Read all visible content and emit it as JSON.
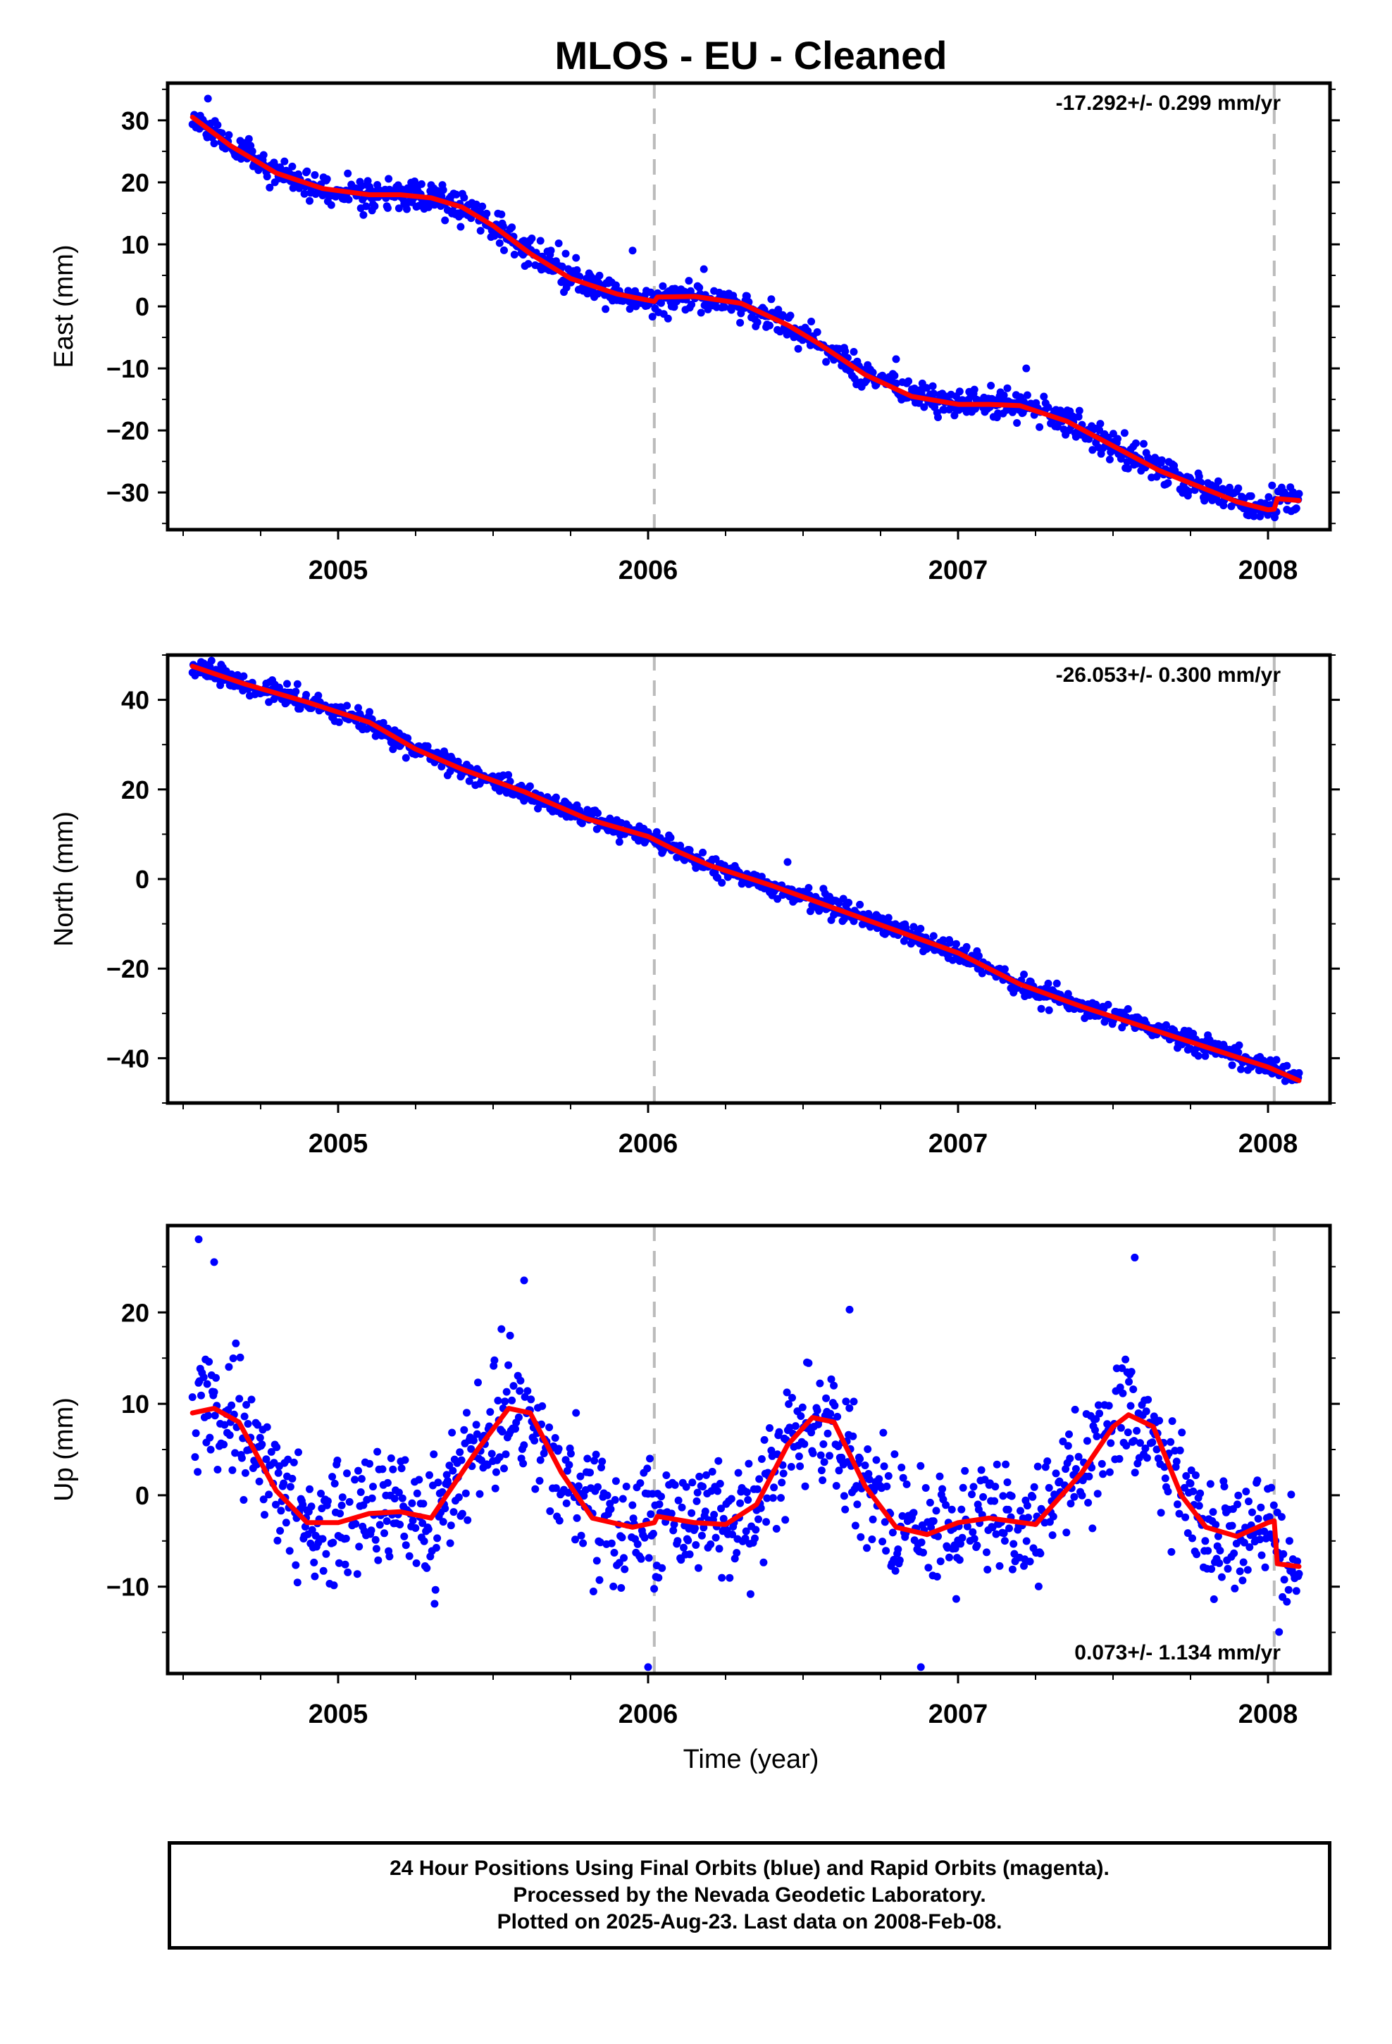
{
  "title": "MLOS  - EU - Cleaned",
  "x_axis_label": "Time (year)",
  "footer": {
    "line1": "24 Hour Positions Using Final Orbits (blue) and Rapid Orbits (magenta).",
    "line2": "Processed by the Nevada Geodetic Laboratory.",
    "line3": "Plotted on 2025-Aug-23. Last data on 2008-Feb-08."
  },
  "colors": {
    "points": "#0000ff",
    "fit": "#ff0000",
    "dashed": "#bbbbbb",
    "frame": "#000000"
  },
  "chart_data": [
    {
      "type": "scatter",
      "component": "East",
      "ylabel": "East (mm)",
      "rate_text": "-17.292+/- 0.299 mm/yr",
      "rate_position": "top-right",
      "xlim": [
        2004.45,
        2008.2
      ],
      "ylim": [
        -36,
        36
      ],
      "xticks": [
        2005,
        2006,
        2007,
        2008
      ],
      "yticks": [
        -30,
        -20,
        -10,
        0,
        10,
        20,
        30
      ],
      "dashed_x": [
        2006.02,
        2008.02
      ],
      "fit": {
        "x": [
          2004.53,
          2004.65,
          2004.8,
          2004.95,
          2005.1,
          2005.2,
          2005.3,
          2005.4,
          2005.5,
          2005.62,
          2005.75,
          2005.9,
          2006.02,
          2006.03,
          2006.15,
          2006.3,
          2006.45,
          2006.55,
          2006.7,
          2006.85,
          2007.0,
          2007.1,
          2007.2,
          2007.35,
          2007.5,
          2007.65,
          2007.8,
          2007.9,
          2008.0,
          2008.02,
          2008.03,
          2008.1
        ],
        "y": [
          30.5,
          26.0,
          21.5,
          19.0,
          18.0,
          18.0,
          17.5,
          16.0,
          13.0,
          8.5,
          4.5,
          2.0,
          0.8,
          1.5,
          1.6,
          0.5,
          -3.0,
          -6.0,
          -11.0,
          -14.5,
          -15.8,
          -15.8,
          -16.0,
          -18.5,
          -22.5,
          -26.5,
          -29.5,
          -31.5,
          -32.8,
          -32.7,
          -31.0,
          -31.3
        ]
      },
      "trend": {
        "slope": -17.292,
        "x0": 2006.3,
        "y0": 0.5
      },
      "scatter_sd": 1.2,
      "seed": 11,
      "outliers": {
        "x": [
          2004.58,
          2005.95,
          2006.18,
          2006.8,
          2007.22
        ],
        "y": [
          33.5,
          9.0,
          6.0,
          -8.5,
          -10.0
        ]
      }
    },
    {
      "type": "scatter",
      "component": "North",
      "ylabel": "North (mm)",
      "rate_text": "-26.053+/- 0.300 mm/yr",
      "rate_position": "top-right",
      "xlim": [
        2004.45,
        2008.2
      ],
      "ylim": [
        -50,
        50
      ],
      "xticks": [
        2005,
        2006,
        2007,
        2008
      ],
      "yticks": [
        -40,
        -20,
        0,
        20,
        40
      ],
      "dashed_x": [
        2006.02,
        2008.02
      ],
      "fit": {
        "x": [
          2004.53,
          2004.7,
          2004.9,
          2005.1,
          2005.25,
          2005.4,
          2005.6,
          2005.8,
          2006.0,
          2006.1,
          2006.2,
          2006.4,
          2006.6,
          2006.8,
          2007.0,
          2007.2,
          2007.4,
          2007.6,
          2007.8,
          2008.0,
          2008.1
        ],
        "y": [
          47.5,
          43.5,
          39.5,
          35.0,
          29.0,
          24.5,
          19.5,
          13.5,
          9.5,
          6.0,
          3.0,
          -1.5,
          -6.5,
          -11.5,
          -16.5,
          -23.5,
          -28.5,
          -33.0,
          -37.5,
          -42.0,
          -45.0
        ]
      },
      "trend": {
        "slope": -26.053,
        "x0": 2006.3,
        "y0": 0.0
      },
      "scatter_sd": 1.1,
      "seed": 23,
      "outliers": {
        "x": [
          2006.45
        ],
        "y": [
          3.8
        ]
      }
    },
    {
      "type": "scatter",
      "component": "Up",
      "ylabel": "Up (mm)",
      "rate_text": "0.073+/- 1.134 mm/yr",
      "rate_position": "bottom-right",
      "xlim": [
        2004.45,
        2008.2
      ],
      "ylim": [
        -19.5,
        29.5
      ],
      "xticks": [
        2005,
        2006,
        2007,
        2008
      ],
      "yticks": [
        -10,
        0,
        10,
        20
      ],
      "dashed_x": [
        2006.02,
        2008.02
      ],
      "fit": {
        "x": [
          2004.53,
          2004.6,
          2004.68,
          2004.8,
          2004.9,
          2005.0,
          2005.1,
          2005.2,
          2005.3,
          2005.45,
          2005.55,
          2005.62,
          2005.72,
          2005.82,
          2005.95,
          2006.02,
          2006.03,
          2006.15,
          2006.25,
          2006.35,
          2006.45,
          2006.53,
          2006.6,
          2006.7,
          2006.8,
          2006.9,
          2007.0,
          2007.1,
          2007.25,
          2007.4,
          2007.5,
          2007.55,
          2007.63,
          2007.72,
          2007.8,
          2007.9,
          2008.0,
          2008.02,
          2008.03,
          2008.1
        ],
        "y": [
          9.0,
          9.5,
          8.0,
          0.5,
          -3.0,
          -3.0,
          -2.0,
          -1.8,
          -2.5,
          5.0,
          9.5,
          9.0,
          2.5,
          -2.5,
          -3.5,
          -3.0,
          -2.3,
          -3.0,
          -3.2,
          -1.0,
          5.5,
          8.5,
          8.0,
          1.0,
          -3.5,
          -4.3,
          -3.0,
          -2.5,
          -3.2,
          2.5,
          7.5,
          8.8,
          7.5,
          0.0,
          -3.5,
          -4.5,
          -3.0,
          -2.8,
          -7.5,
          -7.8
        ]
      },
      "scatter_sd": 3.2,
      "seed": 37,
      "outliers": {
        "x": [
          2004.55,
          2004.6,
          2005.6,
          2006.65,
          2007.57,
          2006.0,
          2006.88
        ],
        "y": [
          28.0,
          25.5,
          23.5,
          20.3,
          26.0,
          -18.8,
          -18.8
        ]
      }
    }
  ]
}
